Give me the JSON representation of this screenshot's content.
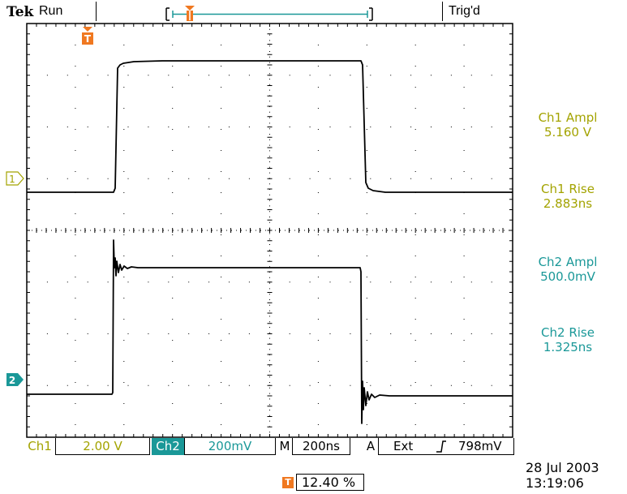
{
  "header": {
    "brand": "Tek",
    "run_state": "Run",
    "trig_state": "Trig'd",
    "trigger_marker_label": "T"
  },
  "channels": {
    "ch1": {
      "marker": "1",
      "color": "#a3a300"
    },
    "ch2": {
      "marker": "2",
      "color": "#1a9898"
    }
  },
  "measurements": [
    {
      "label": "Ch1 Ampl",
      "value": "5.160 V",
      "color": "#a3a300"
    },
    {
      "label": "Ch1 Rise",
      "value": "2.883ns",
      "color": "#a3a300"
    },
    {
      "label": "Ch2 Ampl",
      "value": "500.0mV",
      "color": "#1a9898"
    },
    {
      "label": "Ch2 Rise",
      "value": "1.325ns",
      "color": "#1a9898"
    }
  ],
  "bottom": {
    "ch1_label": "Ch1",
    "ch1_scale": "2.00 V",
    "ch2_label": "Ch2",
    "ch2_scale": "200mV",
    "timebase_label": "M",
    "timebase": "200ns",
    "trigger_mode": "A",
    "trigger_source": "Ext",
    "trigger_slope_icon": "rising-edge-icon",
    "trigger_level": "798mV"
  },
  "date": "28 Jul  2003",
  "time": "13:19:06",
  "trigger_position": "12.40 %",
  "colors": {
    "accent_orange": "#f07820",
    "ch1_yellow": "#a3a300",
    "ch2_cyan": "#1a9898"
  }
}
